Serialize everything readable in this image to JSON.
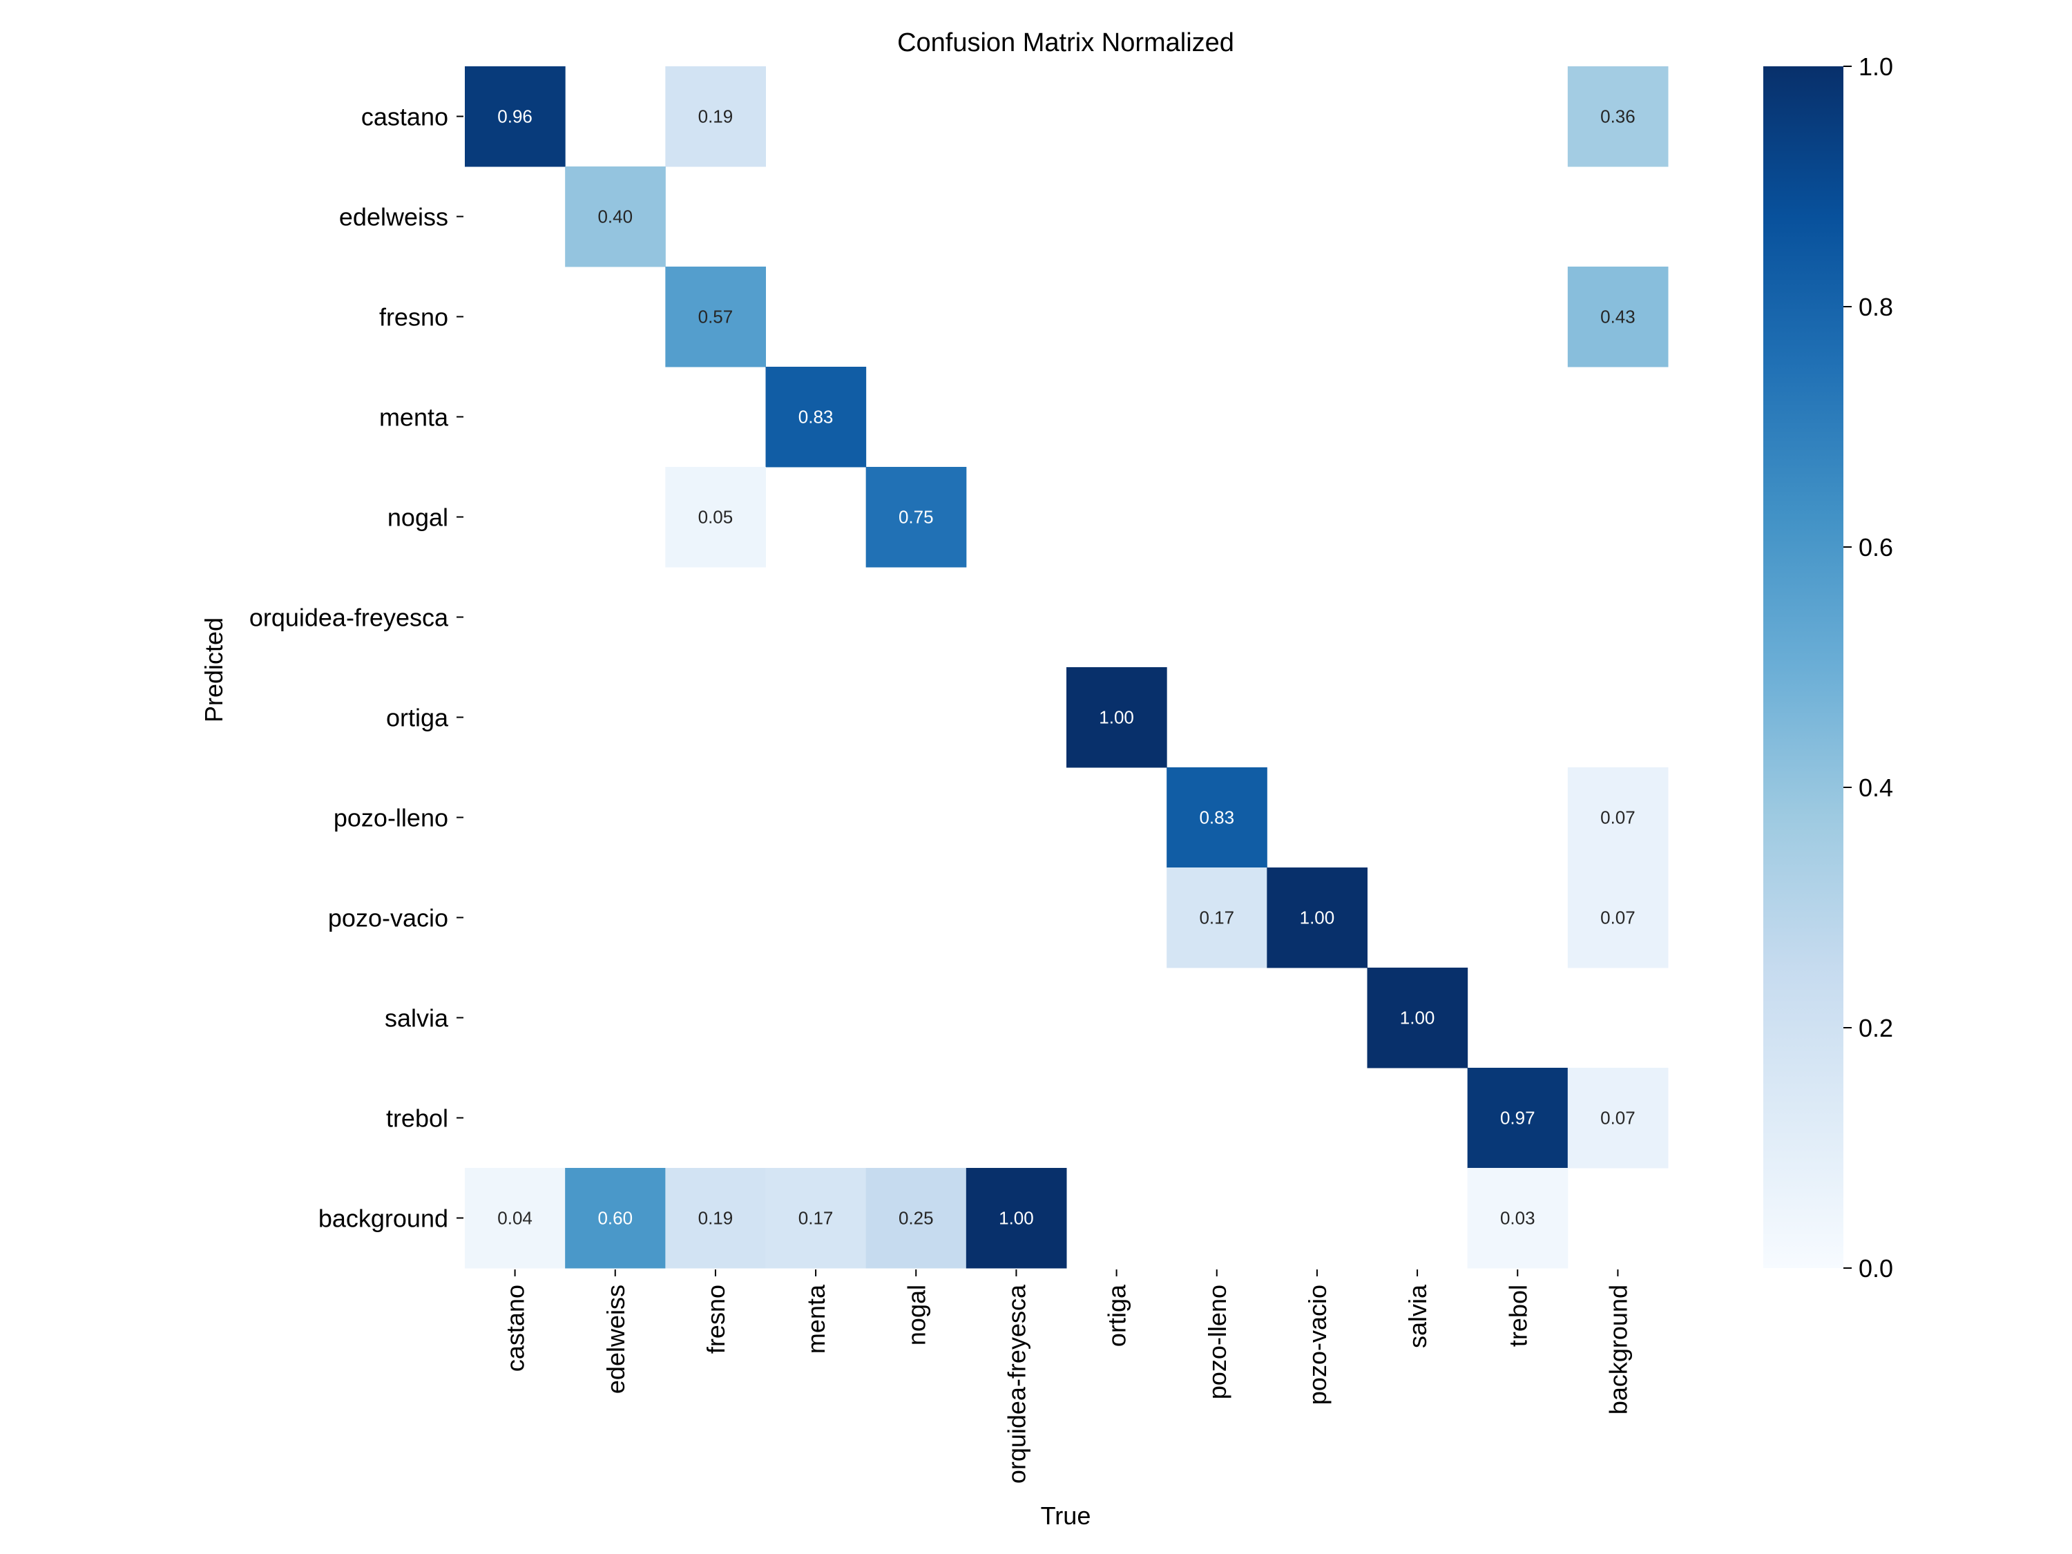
{
  "chart_data": {
    "type": "heatmap",
    "title": "Confusion Matrix Normalized",
    "xlabel": "True",
    "ylabel": "Predicted",
    "x_categories": [
      "castano",
      "edelweiss",
      "fresno",
      "menta",
      "nogal",
      "orquidea-freyesca",
      "ortiga",
      "pozo-lleno",
      "pozo-vacio",
      "salvia",
      "trebol",
      "background"
    ],
    "y_categories": [
      "castano",
      "edelweiss",
      "fresno",
      "menta",
      "nogal",
      "orquidea-freyesca",
      "ortiga",
      "pozo-lleno",
      "pozo-vacio",
      "salvia",
      "trebol",
      "background"
    ],
    "matrix": [
      [
        0.96,
        null,
        0.19,
        null,
        null,
        null,
        null,
        null,
        null,
        null,
        null,
        0.36
      ],
      [
        null,
        0.4,
        null,
        null,
        null,
        null,
        null,
        null,
        null,
        null,
        null,
        null
      ],
      [
        null,
        null,
        0.57,
        null,
        null,
        null,
        null,
        null,
        null,
        null,
        null,
        0.43
      ],
      [
        null,
        null,
        null,
        0.83,
        null,
        null,
        null,
        null,
        null,
        null,
        null,
        null
      ],
      [
        null,
        null,
        0.05,
        null,
        0.75,
        null,
        null,
        null,
        null,
        null,
        null,
        null
      ],
      [
        null,
        null,
        null,
        null,
        null,
        null,
        null,
        null,
        null,
        null,
        null,
        null
      ],
      [
        null,
        null,
        null,
        null,
        null,
        null,
        1.0,
        null,
        null,
        null,
        null,
        null
      ],
      [
        null,
        null,
        null,
        null,
        null,
        null,
        null,
        0.83,
        null,
        null,
        null,
        0.07
      ],
      [
        null,
        null,
        null,
        null,
        null,
        null,
        null,
        0.17,
        1.0,
        null,
        null,
        0.07
      ],
      [
        null,
        null,
        null,
        null,
        null,
        null,
        null,
        null,
        null,
        1.0,
        null,
        null
      ],
      [
        null,
        null,
        null,
        null,
        null,
        null,
        null,
        null,
        null,
        null,
        0.97,
        0.07
      ],
      [
        0.04,
        0.6,
        0.19,
        0.17,
        0.25,
        1.0,
        null,
        null,
        null,
        null,
        0.03,
        null
      ]
    ],
    "colormap": "Blues",
    "value_range": [
      0.0,
      1.0
    ],
    "colorbar_ticks": [
      "0.0",
      "0.2",
      "0.4",
      "0.6",
      "0.8",
      "1.0"
    ]
  }
}
